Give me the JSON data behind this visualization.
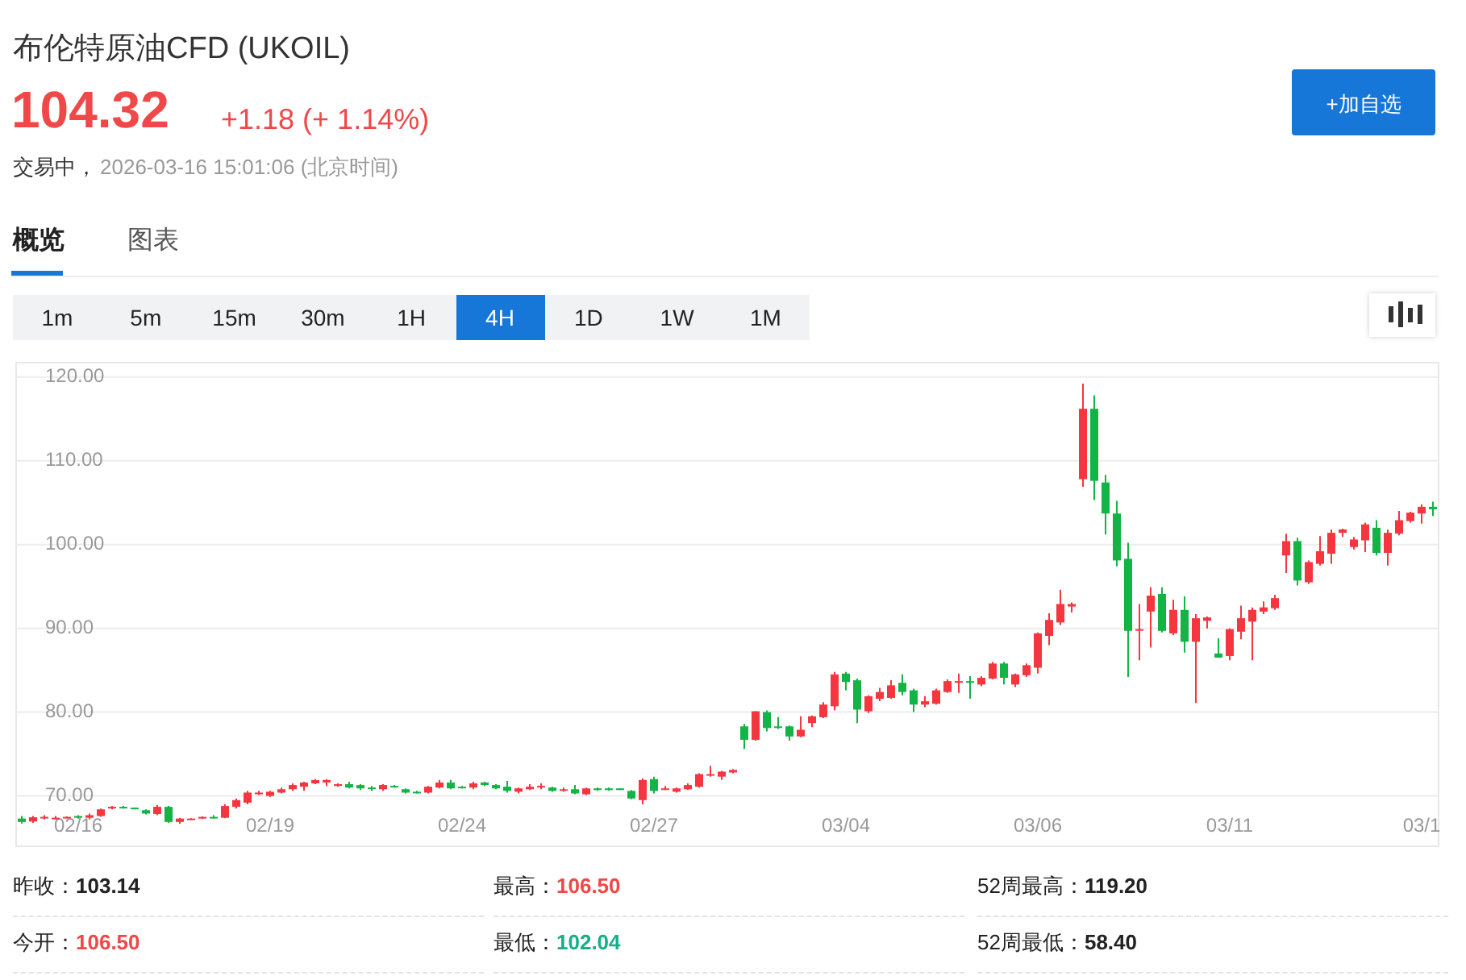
{
  "chart_data": {
    "type": "candlestick",
    "title": "布伦特原油CFD (UKOIL)",
    "annotations": [
      "104.32",
      "+1.18 (+ 1.14%)",
      "交易中，",
      "2026-03-16 15:01:06 (北京时间)",
      "+加自选",
      "概览",
      "图表",
      "1m",
      "5m",
      "15m",
      "30m",
      "1H",
      "4H",
      "1D",
      "1W",
      "1M",
      "昨收：",
      "103.14",
      "最高：",
      "106.50",
      "52周最高：",
      "119.20",
      "今开：",
      "106.50",
      "最低：",
      "102.04",
      "52周最低：",
      "58.40"
    ],
    "categories": [
      null,
      null,
      null,
      null,
      null,
      "02/16",
      null,
      null,
      null,
      null,
      null,
      null,
      null,
      null,
      null,
      null,
      null,
      null,
      null,
      null,
      null,
      null,
      "02/19",
      null,
      null,
      null,
      null,
      null,
      null,
      null,
      null,
      null,
      null,
      null,
      null,
      null,
      null,
      null,
      null,
      "02/24",
      null,
      null,
      null,
      null,
      null,
      null,
      null,
      null,
      null,
      null,
      null,
      null,
      null,
      null,
      null,
      null,
      "02/27",
      null,
      null,
      null,
      null,
      null,
      null,
      null,
      null,
      null,
      null,
      null,
      null,
      null,
      null,
      null,
      null,
      "03/04",
      null,
      null,
      null,
      null,
      null,
      null,
      null,
      null,
      null,
      null,
      null,
      null,
      null,
      null,
      null,
      null,
      "03/06",
      null,
      null,
      null,
      null,
      null,
      null,
      null,
      null,
      null,
      null,
      null,
      null,
      null,
      null,
      null,
      null,
      "03/11",
      null,
      null,
      null,
      null,
      null,
      null,
      null,
      null,
      null,
      null,
      null,
      null,
      null,
      null,
      null,
      null,
      "03/1",
      null
    ],
    "ohlc": [
      [
        67.3,
        67.6,
        66.7,
        66.9
      ],
      [
        66.95,
        67.6,
        66.8,
        67.45
      ],
      [
        67.4,
        67.7,
        67.2,
        67.5
      ],
      [
        67.3,
        67.6,
        67.2,
        67.4
      ],
      [
        67.4,
        67.55,
        67.35,
        67.5
      ],
      [
        67.6,
        67.7,
        67.3,
        67.4
      ],
      [
        67.4,
        67.9,
        67.2,
        67.7
      ],
      [
        67.6,
        68.5,
        67.5,
        68.4
      ],
      [
        68.5,
        68.8,
        68.4,
        68.7
      ],
      [
        68.7,
        68.8,
        68.5,
        68.6
      ],
      [
        68.6,
        68.6,
        68.4,
        68.5
      ],
      [
        68.3,
        68.4,
        67.8,
        67.9
      ],
      [
        67.85,
        68.9,
        67.7,
        68.7
      ],
      [
        68.7,
        68.8,
        66.8,
        66.9
      ],
      [
        66.9,
        67.4,
        66.7,
        67.3
      ],
      [
        67.2,
        67.35,
        67.15,
        67.3
      ],
      [
        67.3,
        67.55,
        67.25,
        67.5
      ],
      [
        67.5,
        67.7,
        67.3,
        67.4
      ],
      [
        67.4,
        69.0,
        67.35,
        68.8
      ],
      [
        68.7,
        69.7,
        68.5,
        69.5
      ],
      [
        69.2,
        70.6,
        69.0,
        70.4
      ],
      [
        70.2,
        70.6,
        70.1,
        70.4
      ],
      [
        70.0,
        70.6,
        69.9,
        70.5
      ],
      [
        70.4,
        71.0,
        70.3,
        70.8
      ],
      [
        70.8,
        71.5,
        70.6,
        71.3
      ],
      [
        71.1,
        71.7,
        70.6,
        71.6
      ],
      [
        71.5,
        72.0,
        71.4,
        71.9
      ],
      [
        71.6,
        72.0,
        71.2,
        71.9
      ],
      [
        71.2,
        71.5,
        71.1,
        71.4
      ],
      [
        71.4,
        71.7,
        70.9,
        71.0
      ],
      [
        71.3,
        71.4,
        70.7,
        70.9
      ],
      [
        71.0,
        71.2,
        70.6,
        70.9
      ],
      [
        70.8,
        71.4,
        70.6,
        71.3
      ],
      [
        71.2,
        71.3,
        71.0,
        71.1
      ],
      [
        70.8,
        70.9,
        70.3,
        70.4
      ],
      [
        70.5,
        70.6,
        70.3,
        70.4
      ],
      [
        70.4,
        71.2,
        70.3,
        71.1
      ],
      [
        71.0,
        71.9,
        70.9,
        71.6
      ],
      [
        71.6,
        71.9,
        70.8,
        70.9
      ],
      [
        71.1,
        71.2,
        70.9,
        71.0
      ],
      [
        71.0,
        71.7,
        70.8,
        71.5
      ],
      [
        71.6,
        71.7,
        71.2,
        71.3
      ],
      [
        71.3,
        71.4,
        70.8,
        70.9
      ],
      [
        71.1,
        71.8,
        70.4,
        70.6
      ],
      [
        70.5,
        71.0,
        70.3,
        70.9
      ],
      [
        70.8,
        71.4,
        70.7,
        71.1
      ],
      [
        71.1,
        71.5,
        70.8,
        71.2
      ],
      [
        71.0,
        71.1,
        70.5,
        70.6
      ],
      [
        70.7,
        71.0,
        70.5,
        70.8
      ],
      [
        70.8,
        71.3,
        70.2,
        70.3
      ],
      [
        70.2,
        71.0,
        70.1,
        70.9
      ],
      [
        70.9,
        71.0,
        70.6,
        70.7
      ],
      [
        70.9,
        71.0,
        70.6,
        70.7
      ],
      [
        70.9,
        70.9,
        70.7,
        70.8
      ],
      [
        70.6,
        70.7,
        69.6,
        69.7
      ],
      [
        69.5,
        72.1,
        69.0,
        71.9
      ],
      [
        72.0,
        72.3,
        70.3,
        70.6
      ],
      [
        70.8,
        71.2,
        70.7,
        70.9
      ],
      [
        70.5,
        71.0,
        70.4,
        70.9
      ],
      [
        70.8,
        71.5,
        70.7,
        71.3
      ],
      [
        71.1,
        72.7,
        71.0,
        72.6
      ],
      [
        72.5,
        73.6,
        72.3,
        72.6
      ],
      [
        72.3,
        73.0,
        71.9,
        72.9
      ],
      [
        72.8,
        73.2,
        72.7,
        73.1
      ],
      [
        78.3,
        78.6,
        75.6,
        76.7
      ],
      [
        76.7,
        80.1,
        76.6,
        80.1
      ],
      [
        80.0,
        80.2,
        77.7,
        78.1
      ],
      [
        78.3,
        79.4,
        78.0,
        78.2
      ],
      [
        78.3,
        78.4,
        76.6,
        77.1
      ],
      [
        77.1,
        79.5,
        77.0,
        77.9
      ],
      [
        78.7,
        79.6,
        78.2,
        79.5
      ],
      [
        79.4,
        81.2,
        79.3,
        80.9
      ],
      [
        80.7,
        84.8,
        80.2,
        84.5
      ],
      [
        84.6,
        84.8,
        82.6,
        83.6
      ],
      [
        83.8,
        84.0,
        78.7,
        80.3
      ],
      [
        80.1,
        82.0,
        79.9,
        81.9
      ],
      [
        81.6,
        82.9,
        81.3,
        82.4
      ],
      [
        81.7,
        83.8,
        81.6,
        83.2
      ],
      [
        83.5,
        84.5,
        82.0,
        82.4
      ],
      [
        82.6,
        82.8,
        80.0,
        80.9
      ],
      [
        80.9,
        81.9,
        80.6,
        81.3
      ],
      [
        81.0,
        82.8,
        80.9,
        82.6
      ],
      [
        82.4,
        83.9,
        82.3,
        83.7
      ],
      [
        83.6,
        84.6,
        82.3,
        83.7
      ],
      [
        83.7,
        84.3,
        81.6,
        83.6
      ],
      [
        83.3,
        84.3,
        83.1,
        84.1
      ],
      [
        84.0,
        86.0,
        83.9,
        85.8
      ],
      [
        85.8,
        86.0,
        83.3,
        84.1
      ],
      [
        83.3,
        84.6,
        83.0,
        84.5
      ],
      [
        84.4,
        85.8,
        84.2,
        85.6
      ],
      [
        85.3,
        89.5,
        84.6,
        89.4
      ],
      [
        89.1,
        91.8,
        88.0,
        91.0
      ],
      [
        90.7,
        94.6,
        90.4,
        92.9
      ],
      [
        92.6,
        93.1,
        91.9,
        92.9
      ],
      [
        107.8,
        119.2,
        106.9,
        116.2
      ],
      [
        116.2,
        117.8,
        105.3,
        107.6
      ],
      [
        107.4,
        108.3,
        101.2,
        103.7
      ],
      [
        103.7,
        105.2,
        97.4,
        98.1
      ],
      [
        98.3,
        100.2,
        84.2,
        89.7
      ],
      [
        89.8,
        92.9,
        86.2,
        89.9
      ],
      [
        92.0,
        94.9,
        87.7,
        93.9
      ],
      [
        94.1,
        94.9,
        89.5,
        89.7
      ],
      [
        89.4,
        93.4,
        89.2,
        92.2
      ],
      [
        92.2,
        93.8,
        87.1,
        88.4
      ],
      [
        88.4,
        91.7,
        81.1,
        91.2
      ],
      [
        90.9,
        91.4,
        90.0,
        91.3
      ],
      [
        87.0,
        88.8,
        86.5,
        86.5
      ],
      [
        86.7,
        90.0,
        86.2,
        89.9
      ],
      [
        89.6,
        92.7,
        88.7,
        91.2
      ],
      [
        90.8,
        92.5,
        86.2,
        92.2
      ],
      [
        92.0,
        93.2,
        91.7,
        92.5
      ],
      [
        92.4,
        94.0,
        92.2,
        93.6
      ],
      [
        98.7,
        101.3,
        96.6,
        100.4
      ],
      [
        100.4,
        100.8,
        95.1,
        95.7
      ],
      [
        95.5,
        98.1,
        95.3,
        97.9
      ],
      [
        97.7,
        101.0,
        97.5,
        99.2
      ],
      [
        98.9,
        101.8,
        97.7,
        101.4
      ],
      [
        101.4,
        101.9,
        100.9,
        101.8
      ],
      [
        99.7,
        100.9,
        99.4,
        100.6
      ],
      [
        100.5,
        102.6,
        99.1,
        102.4
      ],
      [
        102.0,
        102.9,
        98.7,
        99.0
      ],
      [
        99.0,
        101.8,
        97.5,
        101.4
      ],
      [
        101.3,
        104.0,
        101.1,
        102.9
      ],
      [
        102.8,
        103.9,
        102.6,
        103.8
      ],
      [
        103.7,
        104.8,
        102.5,
        104.5
      ],
      [
        104.5,
        105.1,
        103.4,
        104.2
      ]
    ],
    "colors": [
      "#13b345",
      "#f5363f",
      "#f5363f",
      "#f5363f",
      "#f5363f",
      "#13b345",
      "#f5363f",
      "#f5363f",
      "#f5363f",
      "#13b345",
      "#13b345",
      "#13b345",
      "#f5363f",
      "#13b345",
      "#f5363f",
      "#f5363f",
      "#f5363f",
      "#13b345",
      "#f5363f",
      "#f5363f",
      "#f5363f",
      "#f5363f",
      "#f5363f",
      "#f5363f",
      "#f5363f",
      "#f5363f",
      "#f5363f",
      "#f5363f",
      "#f5363f",
      "#13b345",
      "#13b345",
      "#13b345",
      "#f5363f",
      "#13b345",
      "#13b345",
      "#13b345",
      "#f5363f",
      "#f5363f",
      "#13b345",
      "#13b345",
      "#f5363f",
      "#13b345",
      "#13b345",
      "#13b345",
      "#f5363f",
      "#f5363f",
      "#f5363f",
      "#13b345",
      "#f5363f",
      "#13b345",
      "#f5363f",
      "#13b345",
      "#13b345",
      "#13b345",
      "#13b345",
      "#f5363f",
      "#13b345",
      "#f5363f",
      "#f5363f",
      "#f5363f",
      "#f5363f",
      "#f5363f",
      "#f5363f",
      "#f5363f",
      "#13b345",
      "#f5363f",
      "#13b345",
      "#13b345",
      "#13b345",
      "#f5363f",
      "#f5363f",
      "#f5363f",
      "#f5363f",
      "#13b345",
      "#13b345",
      "#f5363f",
      "#f5363f",
      "#f5363f",
      "#13b345",
      "#13b345",
      "#f5363f",
      "#f5363f",
      "#f5363f",
      "#f5363f",
      "#13b345",
      "#f5363f",
      "#f5363f",
      "#13b345",
      "#f5363f",
      "#f5363f",
      "#f5363f",
      "#f5363f",
      "#f5363f",
      "#f5363f",
      "#f5363f",
      "#13b345",
      "#13b345",
      "#13b345",
      "#13b345",
      "#f5363f",
      "#f5363f",
      "#13b345",
      "#f5363f",
      "#13b345",
      "#f5363f",
      "#f5363f",
      "#13b345",
      "#f5363f",
      "#f5363f",
      "#f5363f",
      "#f5363f",
      "#f5363f",
      "#f5363f",
      "#13b345",
      "#f5363f",
      "#f5363f",
      "#f5363f",
      "#f5363f",
      "#f5363f",
      "#f5363f",
      "#13b345",
      "#f5363f",
      "#f5363f",
      "#f5363f",
      "#f5363f",
      "#13b345"
    ],
    "ylim": [
      64,
      121.7
    ],
    "yticks": [
      {
        "value": 70,
        "label": "70.00"
      },
      {
        "value": 80,
        "label": "80.00"
      },
      {
        "value": 90,
        "label": "90.00"
      },
      {
        "value": 100,
        "label": "100.00"
      },
      {
        "value": 110,
        "label": "110.00"
      },
      {
        "value": 120,
        "label": "120.00"
      }
    ],
    "grid": "y"
  }
}
